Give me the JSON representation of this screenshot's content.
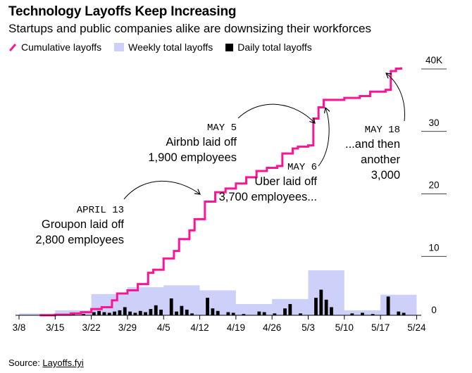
{
  "title": "Technology Layoffs Keep Increasing",
  "subtitle": "Startups and public companies alike are downsizing their workforces",
  "legend": {
    "cumulative": "Cumulative layoffs",
    "weekly": "Weekly total layoffs",
    "daily": "Daily total layoffs"
  },
  "source": {
    "prefix": "Source: ",
    "name": "Layoffs.fyi"
  },
  "colors": {
    "cumulative": "#ff1493",
    "weekly": "#cdd0f9",
    "daily": "#000000"
  },
  "chart_data": {
    "type": "line",
    "x_tick_labels": [
      "3/8",
      "3/15",
      "3/22",
      "3/29",
      "4/5",
      "4/12",
      "4/19",
      "4/26",
      "5/3",
      "5/10",
      "5/17",
      "5/24"
    ],
    "y_tick_labels": [
      "0",
      "10",
      "20",
      "30",
      "40K"
    ],
    "ylim": [
      0,
      40000
    ],
    "series": [
      {
        "name": "Cumulative layoffs",
        "kind": "step-line",
        "points": [
          [
            "3/12",
            0
          ],
          [
            "3/15",
            100
          ],
          [
            "3/18",
            300
          ],
          [
            "3/20",
            500
          ],
          [
            "3/22",
            1000
          ],
          [
            "3/24",
            1300
          ],
          [
            "3/26",
            2400
          ],
          [
            "3/27",
            3500
          ],
          [
            "3/29",
            4000
          ],
          [
            "3/31",
            5000
          ],
          [
            "4/2",
            6800
          ],
          [
            "4/3",
            7300
          ],
          [
            "4/5",
            9100
          ],
          [
            "4/7",
            10300
          ],
          [
            "4/8",
            12200
          ],
          [
            "4/10",
            13600
          ],
          [
            "4/11",
            15400
          ],
          [
            "4/13",
            18200
          ],
          [
            "4/15",
            19700
          ],
          [
            "4/17",
            20300
          ],
          [
            "4/19",
            21100
          ],
          [
            "4/21",
            22100
          ],
          [
            "4/23",
            23100
          ],
          [
            "4/25",
            23600
          ],
          [
            "4/27",
            23900
          ],
          [
            "4/28",
            25900
          ],
          [
            "4/30",
            26700
          ],
          [
            "5/1",
            27000
          ],
          [
            "5/3",
            27200
          ],
          [
            "5/4",
            31500
          ],
          [
            "5/5",
            33300
          ],
          [
            "5/6",
            34500
          ],
          [
            "5/10",
            34800
          ],
          [
            "5/13",
            35100
          ],
          [
            "5/15",
            35800
          ],
          [
            "5/18",
            36100
          ],
          [
            "5/19",
            39100
          ],
          [
            "5/20",
            39500
          ],
          [
            "5/21",
            39700
          ]
        ]
      },
      {
        "name": "Weekly total layoffs",
        "kind": "step-area",
        "start_dates": [
          "3/8",
          "3/15",
          "3/22",
          "3/29",
          "4/5",
          "4/12",
          "4/19",
          "4/26",
          "5/3",
          "5/10",
          "5/17"
        ],
        "values": [
          300,
          800,
          3400,
          4500,
          4800,
          4000,
          1800,
          2600,
          7200,
          800,
          3300
        ]
      },
      {
        "name": "Daily total layoffs",
        "kind": "bar",
        "points": [
          [
            "3/12",
            100
          ],
          [
            "3/14",
            150
          ],
          [
            "3/16",
            200
          ],
          [
            "3/18",
            300
          ],
          [
            "3/20",
            200
          ],
          [
            "3/22",
            500
          ],
          [
            "3/23",
            700
          ],
          [
            "3/24",
            500
          ],
          [
            "3/25",
            400
          ],
          [
            "3/26",
            600
          ],
          [
            "3/27",
            800
          ],
          [
            "3/28",
            1300
          ],
          [
            "3/29",
            600
          ],
          [
            "3/30",
            400
          ],
          [
            "3/31",
            700
          ],
          [
            "4/1",
            500
          ],
          [
            "4/2",
            1000
          ],
          [
            "4/3",
            1600
          ],
          [
            "4/4",
            900
          ],
          [
            "4/6",
            2700
          ],
          [
            "4/7",
            600
          ],
          [
            "4/8",
            1500
          ],
          [
            "4/9",
            900
          ],
          [
            "4/10",
            300
          ],
          [
            "4/13",
            2800
          ],
          [
            "4/14",
            1100
          ],
          [
            "4/15",
            700
          ],
          [
            "4/17",
            500
          ],
          [
            "4/18",
            400
          ],
          [
            "4/20",
            200
          ],
          [
            "4/23",
            600
          ],
          [
            "4/24",
            500
          ],
          [
            "4/26",
            300
          ],
          [
            "4/28",
            1100
          ],
          [
            "4/29",
            1800
          ],
          [
            "5/1",
            300
          ],
          [
            "5/4",
            2800
          ],
          [
            "5/5",
            4100
          ],
          [
            "5/6",
            2500
          ],
          [
            "5/7",
            1300
          ],
          [
            "5/11",
            300
          ],
          [
            "5/13",
            400
          ],
          [
            "5/15",
            200
          ],
          [
            "5/18",
            3000
          ],
          [
            "5/20",
            600
          ],
          [
            "5/21",
            400
          ]
        ]
      }
    ],
    "annotations": [
      {
        "date": "APRIL 13",
        "text": [
          "Groupon laid off",
          "2,800 employees"
        ]
      },
      {
        "date": "MAY 5",
        "text": [
          "Airbnb laid off",
          "1,900 employees"
        ]
      },
      {
        "date": "MAY 6",
        "text": [
          "Uber laid off",
          "3,700 employees..."
        ]
      },
      {
        "date": "MAY 18",
        "text": [
          "...and then",
          "another",
          "3,000"
        ]
      }
    ]
  }
}
